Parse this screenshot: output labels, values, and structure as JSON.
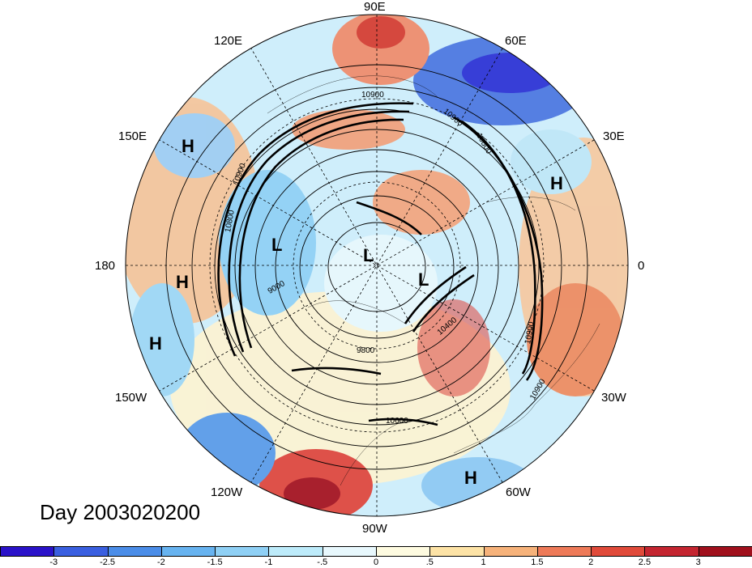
{
  "map": {
    "projection": "north polar stereographic",
    "title_label": "Day 2003020200",
    "longitude_labels": [
      "90E",
      "60E",
      "30E",
      "0",
      "30W",
      "60W",
      "90W",
      "120W",
      "150W",
      "180",
      "150E",
      "120E"
    ],
    "pressure_centers": [
      {
        "type": "H",
        "near": "150E"
      },
      {
        "type": "H",
        "near": "30E"
      },
      {
        "type": "H",
        "near": "180"
      },
      {
        "type": "H",
        "near": "150W"
      },
      {
        "type": "H",
        "near": "60W"
      },
      {
        "type": "L",
        "near": "Siberia"
      },
      {
        "type": "L",
        "near": "pole"
      },
      {
        "type": "L",
        "near": "Greenland"
      }
    ],
    "contour_labels": [
      "10900",
      "10900",
      "10800",
      "10900",
      "10800",
      "10900",
      "10400",
      "10900",
      "9800",
      "10600",
      "9000"
    ],
    "colors": {
      "deep_blue": "#2b1bd6",
      "blue": "#3f7de8",
      "light_blue": "#9fd8f5",
      "cream": "#fdf3c8",
      "orange": "#f2a070",
      "red": "#d9302a",
      "dark_red": "#a50f1c"
    }
  },
  "colorbar": {
    "ticks": [
      "-3",
      "-2.5",
      "-2",
      "-1.5",
      "-1",
      "-.5",
      "0",
      ".5",
      "1",
      "1.5",
      "2",
      "2.5",
      "3"
    ],
    "colors": [
      "#2a12c9",
      "#3a5fe0",
      "#4b8de8",
      "#67b3f0",
      "#8fd0f5",
      "#bdebfa",
      "#e8f8fd",
      "#fefbe0",
      "#fde3a6",
      "#f6b27a",
      "#ee7a58",
      "#e04a3a",
      "#c42530",
      "#a0101c"
    ]
  }
}
